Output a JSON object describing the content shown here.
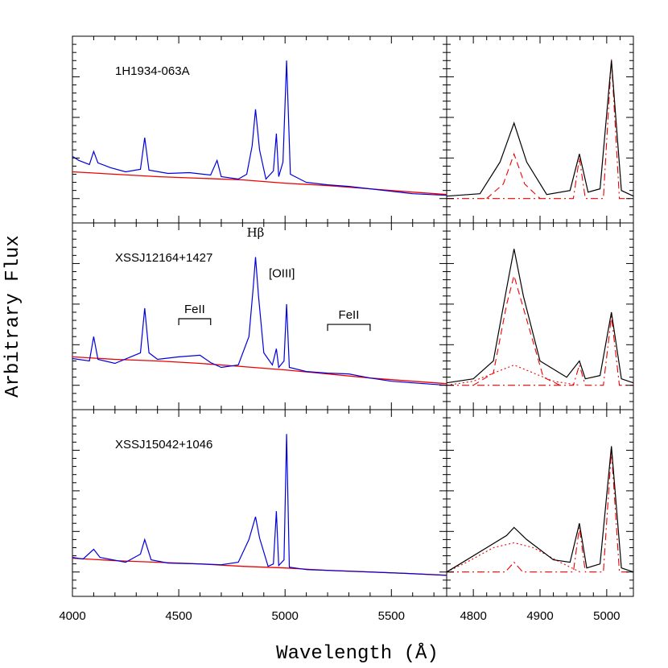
{
  "colors": {
    "spectrum": "#0000dd",
    "continuum": "#ee0000",
    "fit_total": "#000000",
    "fit_component": "#ee0000",
    "frame": "#000000"
  },
  "chart_data": {
    "type": "line",
    "ylabel": "Arbitrary Flux",
    "xlabel": "Wavelength (Å)",
    "main_xlim": [
      4000,
      5760
    ],
    "main_xticks": [
      4000,
      4500,
      5000,
      5500
    ],
    "zoom_xlim": [
      4760,
      5040
    ],
    "zoom_xticks": [
      4800,
      4900,
      5000
    ],
    "panels": [
      {
        "object": "1H1934-063A",
        "spectrum": [
          [
            4000,
            0.52
          ],
          [
            4030,
            0.47
          ],
          [
            4080,
            0.42
          ],
          [
            4100,
            0.58
          ],
          [
            4120,
            0.44
          ],
          [
            4180,
            0.38
          ],
          [
            4250,
            0.33
          ],
          [
            4320,
            0.36
          ],
          [
            4340,
            0.75
          ],
          [
            4360,
            0.35
          ],
          [
            4450,
            0.31
          ],
          [
            4550,
            0.32
          ],
          [
            4650,
            0.29
          ],
          [
            4680,
            0.47
          ],
          [
            4700,
            0.27
          ],
          [
            4780,
            0.24
          ],
          [
            4820,
            0.3
          ],
          [
            4845,
            0.65
          ],
          [
            4861,
            1.1
          ],
          [
            4880,
            0.6
          ],
          [
            4910,
            0.24
          ],
          [
            4945,
            0.34
          ],
          [
            4959,
            0.8
          ],
          [
            4970,
            0.27
          ],
          [
            4990,
            0.45
          ],
          [
            5007,
            1.7
          ],
          [
            5025,
            0.3
          ],
          [
            5100,
            0.2
          ],
          [
            5200,
            0.17
          ],
          [
            5300,
            0.15
          ],
          [
            5400,
            0.12
          ],
          [
            5500,
            0.09
          ],
          [
            5600,
            0.06
          ],
          [
            5760,
            0.04
          ]
        ],
        "continuum": [
          [
            4000,
            0.33
          ],
          [
            4200,
            0.3
          ],
          [
            4400,
            0.27
          ],
          [
            4600,
            0.25
          ],
          [
            4800,
            0.23
          ],
          [
            5000,
            0.19
          ],
          [
            5200,
            0.16
          ],
          [
            5400,
            0.12
          ],
          [
            5600,
            0.08
          ],
          [
            5760,
            0.05
          ]
        ],
        "zoom_total": [
          [
            4760,
            0.03
          ],
          [
            4810,
            0.06
          ],
          [
            4840,
            0.45
          ],
          [
            4861,
            0.93
          ],
          [
            4880,
            0.45
          ],
          [
            4910,
            0.05
          ],
          [
            4945,
            0.1
          ],
          [
            4959,
            0.55
          ],
          [
            4972,
            0.08
          ],
          [
            4990,
            0.12
          ],
          [
            5007,
            1.7
          ],
          [
            5022,
            0.1
          ],
          [
            5040,
            0.03
          ]
        ],
        "zoom_components": [
          {
            "style": "dash",
            "points": [
              [
                4820,
                0.0
              ],
              [
                4845,
                0.18
              ],
              [
                4861,
                0.55
              ],
              [
                4877,
                0.18
              ],
              [
                4900,
                0.0
              ]
            ]
          },
          {
            "style": "dashdot",
            "points": [
              [
                4760,
                0.0
              ],
              [
                4950,
                0.0
              ],
              [
                4959,
                0.5
              ],
              [
                4968,
                0.0
              ],
              [
                4995,
                0.0
              ],
              [
                5007,
                1.72
              ],
              [
                5019,
                0.0
              ],
              [
                5040,
                0.0
              ]
            ]
          }
        ]
      },
      {
        "object": "XSSJ12164+1427",
        "annotations": [
          {
            "text": "Hβ",
            "x": 4861,
            "y": 1.83
          },
          {
            "text": "[OIII]",
            "x": 4985,
            "y": 1.33
          }
        ],
        "brackets": [
          {
            "text": "FeII",
            "x0": 4500,
            "x1": 4650,
            "y": 0.82
          },
          {
            "text": "FeII",
            "x0": 5200,
            "x1": 5400,
            "y": 0.75
          }
        ],
        "spectrum": [
          [
            4000,
            0.33
          ],
          [
            4080,
            0.3
          ],
          [
            4100,
            0.6
          ],
          [
            4120,
            0.32
          ],
          [
            4200,
            0.27
          ],
          [
            4320,
            0.4
          ],
          [
            4340,
            0.95
          ],
          [
            4360,
            0.4
          ],
          [
            4400,
            0.32
          ],
          [
            4500,
            0.35
          ],
          [
            4600,
            0.37
          ],
          [
            4650,
            0.28
          ],
          [
            4700,
            0.22
          ],
          [
            4780,
            0.25
          ],
          [
            4830,
            0.6
          ],
          [
            4850,
            1.2
          ],
          [
            4861,
            1.58
          ],
          [
            4875,
            1.1
          ],
          [
            4900,
            0.4
          ],
          [
            4940,
            0.25
          ],
          [
            4959,
            0.45
          ],
          [
            4970,
            0.22
          ],
          [
            4995,
            0.3
          ],
          [
            5007,
            1.0
          ],
          [
            5020,
            0.22
          ],
          [
            5100,
            0.17
          ],
          [
            5200,
            0.15
          ],
          [
            5300,
            0.14
          ],
          [
            5400,
            0.09
          ],
          [
            5500,
            0.05
          ],
          [
            5600,
            0.03
          ],
          [
            5760,
            0.0
          ]
        ],
        "continuum": [
          [
            4000,
            0.35
          ],
          [
            4200,
            0.32
          ],
          [
            4400,
            0.3
          ],
          [
            4600,
            0.27
          ],
          [
            4800,
            0.23
          ],
          [
            5000,
            0.19
          ],
          [
            5200,
            0.14
          ],
          [
            5400,
            0.09
          ],
          [
            5600,
            0.05
          ],
          [
            5760,
            0.02
          ]
        ],
        "zoom_total": [
          [
            4760,
            0.03
          ],
          [
            4800,
            0.08
          ],
          [
            4830,
            0.3
          ],
          [
            4850,
            1.2
          ],
          [
            4861,
            1.68
          ],
          [
            4875,
            1.1
          ],
          [
            4900,
            0.3
          ],
          [
            4940,
            0.1
          ],
          [
            4959,
            0.3
          ],
          [
            4968,
            0.08
          ],
          [
            4990,
            0.12
          ],
          [
            5007,
            0.9
          ],
          [
            5022,
            0.08
          ],
          [
            5040,
            0.03
          ]
        ],
        "zoom_components": [
          {
            "style": "dash",
            "points": [
              [
                4800,
                0.0
              ],
              [
                4830,
                0.15
              ],
              [
                4850,
                1.0
              ],
              [
                4861,
                1.35
              ],
              [
                4875,
                0.95
              ],
              [
                4905,
                0.1
              ],
              [
                4930,
                0.0
              ]
            ]
          },
          {
            "style": "dot",
            "points": [
              [
                4760,
                0.0
              ],
              [
                4800,
                0.05
              ],
              [
                4861,
                0.25
              ],
              [
                4920,
                0.05
              ],
              [
                4960,
                0.0
              ]
            ]
          },
          {
            "style": "dashdot",
            "points": [
              [
                4760,
                0.0
              ],
              [
                4950,
                0.0
              ],
              [
                4959,
                0.25
              ],
              [
                4968,
                0.0
              ],
              [
                4995,
                0.0
              ],
              [
                5007,
                0.85
              ],
              [
                5019,
                0.0
              ],
              [
                5040,
                0.0
              ]
            ]
          }
        ]
      },
      {
        "object": "XSSJ15042+1046",
        "spectrum": [
          [
            4000,
            0.18
          ],
          [
            4050,
            0.16
          ],
          [
            4100,
            0.28
          ],
          [
            4130,
            0.18
          ],
          [
            4250,
            0.12
          ],
          [
            4320,
            0.22
          ],
          [
            4340,
            0.4
          ],
          [
            4370,
            0.15
          ],
          [
            4450,
            0.11
          ],
          [
            4600,
            0.1
          ],
          [
            4700,
            0.09
          ],
          [
            4780,
            0.12
          ],
          [
            4830,
            0.4
          ],
          [
            4861,
            0.68
          ],
          [
            4880,
            0.42
          ],
          [
            4920,
            0.07
          ],
          [
            4945,
            0.1
          ],
          [
            4959,
            0.75
          ],
          [
            4970,
            0.08
          ],
          [
            4995,
            0.15
          ],
          [
            5007,
            1.7
          ],
          [
            5020,
            0.06
          ],
          [
            5100,
            0.03
          ],
          [
            5200,
            0.02
          ],
          [
            5400,
            0.0
          ],
          [
            5600,
            -0.02
          ],
          [
            5760,
            -0.04
          ]
        ],
        "continuum": [
          [
            4000,
            0.17
          ],
          [
            4200,
            0.14
          ],
          [
            4400,
            0.12
          ],
          [
            4600,
            0.1
          ],
          [
            4800,
            0.07
          ],
          [
            5000,
            0.05
          ],
          [
            5200,
            0.02
          ],
          [
            5400,
            0.0
          ],
          [
            5600,
            -0.02
          ],
          [
            5760,
            -0.04
          ]
        ],
        "zoom_total": [
          [
            4760,
            0.0
          ],
          [
            4780,
            0.1
          ],
          [
            4820,
            0.3
          ],
          [
            4850,
            0.45
          ],
          [
            4861,
            0.55
          ],
          [
            4880,
            0.4
          ],
          [
            4920,
            0.15
          ],
          [
            4945,
            0.12
          ],
          [
            4959,
            0.6
          ],
          [
            4970,
            0.05
          ],
          [
            4990,
            0.1
          ],
          [
            5007,
            1.55
          ],
          [
            5022,
            0.05
          ],
          [
            5040,
            0.0
          ]
        ],
        "zoom_components": [
          {
            "style": "dot",
            "points": [
              [
                4760,
                0.0
              ],
              [
                4790,
                0.12
              ],
              [
                4830,
                0.3
              ],
              [
                4861,
                0.36
              ],
              [
                4890,
                0.3
              ],
              [
                4930,
                0.12
              ],
              [
                4960,
                0.0
              ]
            ]
          },
          {
            "style": "dashdot",
            "points": [
              [
                4760,
                0.0
              ],
              [
                4848,
                0.0
              ],
              [
                4861,
                0.12
              ],
              [
                4874,
                0.0
              ],
              [
                4950,
                0.0
              ],
              [
                4959,
                0.55
              ],
              [
                4968,
                0.0
              ],
              [
                4995,
                0.0
              ],
              [
                5007,
                1.5
              ],
              [
                5019,
                0.0
              ],
              [
                5040,
                0.0
              ]
            ]
          }
        ]
      }
    ]
  }
}
